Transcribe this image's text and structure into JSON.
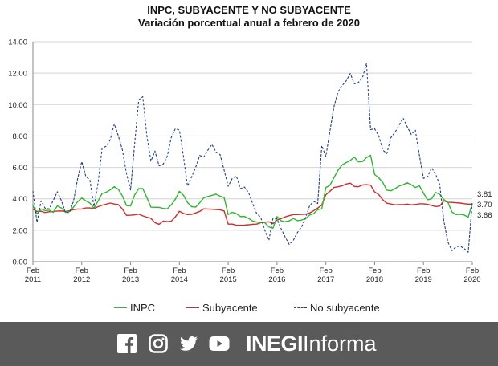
{
  "chart_data": {
    "type": "line",
    "title": "INPC, SUBYACENTE Y NO SUBYACENTE",
    "subtitle": "Variación porcentual anual a febrero de 2020",
    "xlabel": "",
    "ylabel": "",
    "ylim": [
      0,
      14
    ],
    "yticks": [
      "0.00",
      "2.00",
      "4.00",
      "6.00",
      "8.00",
      "10.00",
      "12.00",
      "14.00"
    ],
    "xticks": [
      {
        "index": 0,
        "month": "Feb",
        "year": "2011"
      },
      {
        "index": 12,
        "month": "Feb",
        "year": "2012"
      },
      {
        "index": 24,
        "month": "Feb",
        "year": "2013"
      },
      {
        "index": 36,
        "month": "Feb",
        "year": "2014"
      },
      {
        "index": 48,
        "month": "Feb",
        "year": "2015"
      },
      {
        "index": 60,
        "month": "Feb",
        "year": "2016"
      },
      {
        "index": 72,
        "month": "Feb",
        "year": "2017"
      },
      {
        "index": 84,
        "month": "Feb",
        "year": "2018"
      },
      {
        "index": 96,
        "month": "Feb",
        "year": "2019"
      },
      {
        "index": 108,
        "month": "Feb",
        "year": "2020"
      }
    ],
    "grid": "horizontal",
    "legend": "bottom",
    "end_labels": [
      "3.81",
      "3.70",
      "3.66"
    ],
    "series": [
      {
        "name": "INPC",
        "color": "#2db82d",
        "style": "solid",
        "values": [
          3.57,
          3.04,
          3.36,
          3.25,
          3.28,
          3.14,
          3.55,
          3.42,
          3.14,
          3.2,
          3.48,
          3.82,
          4.05,
          3.87,
          3.73,
          3.41,
          3.85,
          4.34,
          4.42,
          4.57,
          4.77,
          4.6,
          4.18,
          3.57,
          3.55,
          4.25,
          4.65,
          4.65,
          4.09,
          3.47,
          3.46,
          3.46,
          3.39,
          3.36,
          3.62,
          3.97,
          4.48,
          4.23,
          3.76,
          3.5,
          3.47,
          3.75,
          4.07,
          4.15,
          4.22,
          4.3,
          4.17,
          4.08,
          3.0,
          3.14,
          3.06,
          2.87,
          2.88,
          2.76,
          2.59,
          2.52,
          2.52,
          2.48,
          2.21,
          2.13,
          2.87,
          2.6,
          2.54,
          2.6,
          2.75,
          2.61,
          2.65,
          2.73,
          2.97,
          3.06,
          3.31,
          3.36,
          4.72,
          4.86,
          5.35,
          5.82,
          6.16,
          6.31,
          6.44,
          6.66,
          6.35,
          6.37,
          6.63,
          6.77,
          5.55,
          5.34,
          5.04,
          4.55,
          4.51,
          4.65,
          4.81,
          4.9,
          5.02,
          4.9,
          4.72,
          4.83,
          4.37,
          3.94,
          4.0,
          4.41,
          4.28,
          3.95,
          3.78,
          3.16,
          3.0,
          3.02,
          2.97,
          2.83,
          3.7
        ]
      },
      {
        "name": "Subyacente",
        "color": "#d42a2a",
        "style": "solid",
        "values": [
          3.34,
          3.2,
          3.21,
          3.13,
          3.18,
          3.19,
          3.22,
          3.23,
          3.19,
          3.24,
          3.31,
          3.35,
          3.35,
          3.42,
          3.42,
          3.38,
          3.5,
          3.59,
          3.66,
          3.73,
          3.67,
          3.63,
          3.35,
          2.95,
          2.96,
          2.98,
          3.03,
          2.92,
          2.83,
          2.76,
          2.48,
          2.38,
          2.58,
          2.55,
          2.57,
          2.85,
          3.21,
          3.07,
          3.0,
          3.01,
          3.1,
          3.2,
          3.36,
          3.35,
          3.34,
          3.32,
          3.3,
          3.23,
          2.39,
          2.39,
          2.32,
          2.32,
          2.33,
          2.35,
          2.38,
          2.39,
          2.48,
          2.52,
          2.54,
          2.42,
          2.65,
          2.74,
          2.85,
          2.93,
          3.0,
          3.0,
          3.01,
          3.02,
          3.1,
          3.24,
          3.41,
          3.61,
          4.26,
          4.48,
          4.72,
          4.77,
          4.83,
          4.94,
          5.0,
          4.79,
          4.77,
          4.88,
          4.9,
          4.87,
          4.44,
          4.27,
          3.94,
          3.72,
          3.67,
          3.62,
          3.63,
          3.63,
          3.66,
          3.62,
          3.64,
          3.68,
          3.68,
          3.65,
          3.58,
          3.51,
          3.54,
          3.87,
          3.78,
          3.77,
          3.75,
          3.73,
          3.69,
          3.66,
          3.66
        ]
      },
      {
        "name": "No subyacente",
        "color": "#1f3f8f",
        "style": "dashed",
        "values": [
          4.5,
          2.5,
          3.87,
          3.4,
          3.36,
          3.9,
          4.45,
          3.89,
          3.13,
          3.13,
          3.87,
          5.3,
          6.37,
          5.43,
          5.2,
          3.5,
          4.98,
          7.22,
          7.35,
          7.75,
          8.77,
          8.0,
          7.1,
          5.6,
          4.56,
          7.5,
          10.3,
          10.5,
          8.02,
          6.4,
          7.04,
          6.1,
          6.2,
          6.7,
          7.9,
          8.46,
          8.38,
          6.7,
          4.8,
          5.4,
          6.0,
          6.76,
          6.66,
          7.1,
          7.46,
          6.98,
          6.82,
          5.82,
          4.8,
          5.3,
          5.46,
          4.65,
          4.75,
          4.4,
          3.7,
          3.07,
          2.82,
          2.0,
          1.36,
          2.75,
          2.73,
          2.1,
          1.57,
          1.1,
          1.35,
          1.85,
          2.2,
          2.78,
          3.55,
          3.84,
          3.7,
          7.38,
          6.7,
          8.3,
          9.87,
          10.82,
          11.21,
          11.51,
          11.98,
          11.32,
          11.4,
          11.7,
          12.62,
          8.41,
          8.46,
          8.01,
          7.1,
          6.89,
          7.9,
          8.23,
          8.69,
          9.14,
          8.59,
          8.09,
          8.37,
          6.77,
          5.3,
          5.4,
          5.98,
          5.56,
          4.9,
          2.6,
          1.25,
          0.7,
          0.95,
          0.99,
          0.84,
          0.6,
          3.81
        ]
      }
    ]
  },
  "footer": {
    "brand_bold": "INEGI",
    "brand_light": "Informa",
    "icons": [
      "facebook-icon",
      "instagram-icon",
      "twitter-icon",
      "youtube-icon"
    ]
  }
}
